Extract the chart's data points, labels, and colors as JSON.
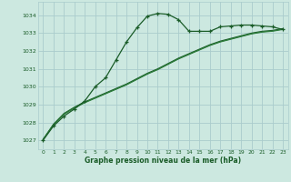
{
  "background_color": "#cce8e0",
  "grid_color": "#aacccc",
  "line_color_dark": "#1a5c28",
  "line_color_mid": "#2a7a38",
  "xlabel": "Graphe pression niveau de la mer (hPa)",
  "xlim": [
    -0.5,
    23.5
  ],
  "ylim": [
    1026.5,
    1034.75
  ],
  "yticks": [
    1027,
    1028,
    1029,
    1030,
    1031,
    1032,
    1033,
    1034
  ],
  "xticks": [
    0,
    1,
    2,
    3,
    4,
    5,
    6,
    7,
    8,
    9,
    10,
    11,
    12,
    13,
    14,
    15,
    16,
    17,
    18,
    19,
    20,
    21,
    22,
    23
  ],
  "series1_x": [
    0,
    1,
    2,
    3,
    4,
    5,
    6,
    7,
    8,
    9,
    10,
    11,
    12,
    13,
    14,
    15,
    16,
    17,
    18,
    19,
    20,
    21,
    22,
    23
  ],
  "series1_y": [
    1027.0,
    1027.8,
    1028.35,
    1028.75,
    1029.2,
    1030.0,
    1030.5,
    1031.5,
    1032.5,
    1033.3,
    1033.95,
    1034.1,
    1034.05,
    1033.75,
    1033.1,
    1033.1,
    1033.1,
    1033.35,
    1033.4,
    1033.45,
    1033.45,
    1033.4,
    1033.35,
    1033.2
  ],
  "series2_x": [
    0,
    1,
    2,
    3,
    4,
    5,
    6,
    7,
    8,
    9,
    10,
    11,
    12,
    13,
    14,
    15,
    16,
    17,
    18,
    19,
    20,
    21,
    22,
    23
  ],
  "series2_y": [
    1027.05,
    1027.9,
    1028.5,
    1028.85,
    1029.15,
    1029.4,
    1029.65,
    1029.9,
    1030.15,
    1030.45,
    1030.75,
    1031.0,
    1031.3,
    1031.6,
    1031.85,
    1032.1,
    1032.35,
    1032.55,
    1032.7,
    1032.85,
    1033.0,
    1033.1,
    1033.15,
    1033.25
  ],
  "series3_x": [
    0,
    1,
    2,
    3,
    4,
    5,
    6,
    7,
    8,
    9,
    10,
    11,
    12,
    13,
    14,
    15,
    16,
    17,
    18,
    19,
    20,
    21,
    22,
    23
  ],
  "series3_y": [
    1027.05,
    1027.85,
    1028.45,
    1028.8,
    1029.1,
    1029.35,
    1029.6,
    1029.85,
    1030.1,
    1030.4,
    1030.7,
    1030.95,
    1031.25,
    1031.55,
    1031.8,
    1032.05,
    1032.3,
    1032.5,
    1032.65,
    1032.8,
    1032.95,
    1033.05,
    1033.1,
    1033.2
  ],
  "series4_x": [
    0,
    1,
    2,
    3,
    4,
    5,
    6,
    7,
    8,
    9,
    10,
    11,
    12,
    13,
    14,
    15,
    16,
    17,
    18,
    19,
    20,
    21,
    22,
    23
  ],
  "series4_y": [
    1027.05,
    1027.88,
    1028.48,
    1028.82,
    1029.12,
    1029.37,
    1029.62,
    1029.87,
    1030.12,
    1030.42,
    1030.72,
    1030.97,
    1031.27,
    1031.57,
    1031.82,
    1032.07,
    1032.32,
    1032.52,
    1032.67,
    1032.82,
    1032.97,
    1033.07,
    1033.12,
    1033.22
  ]
}
